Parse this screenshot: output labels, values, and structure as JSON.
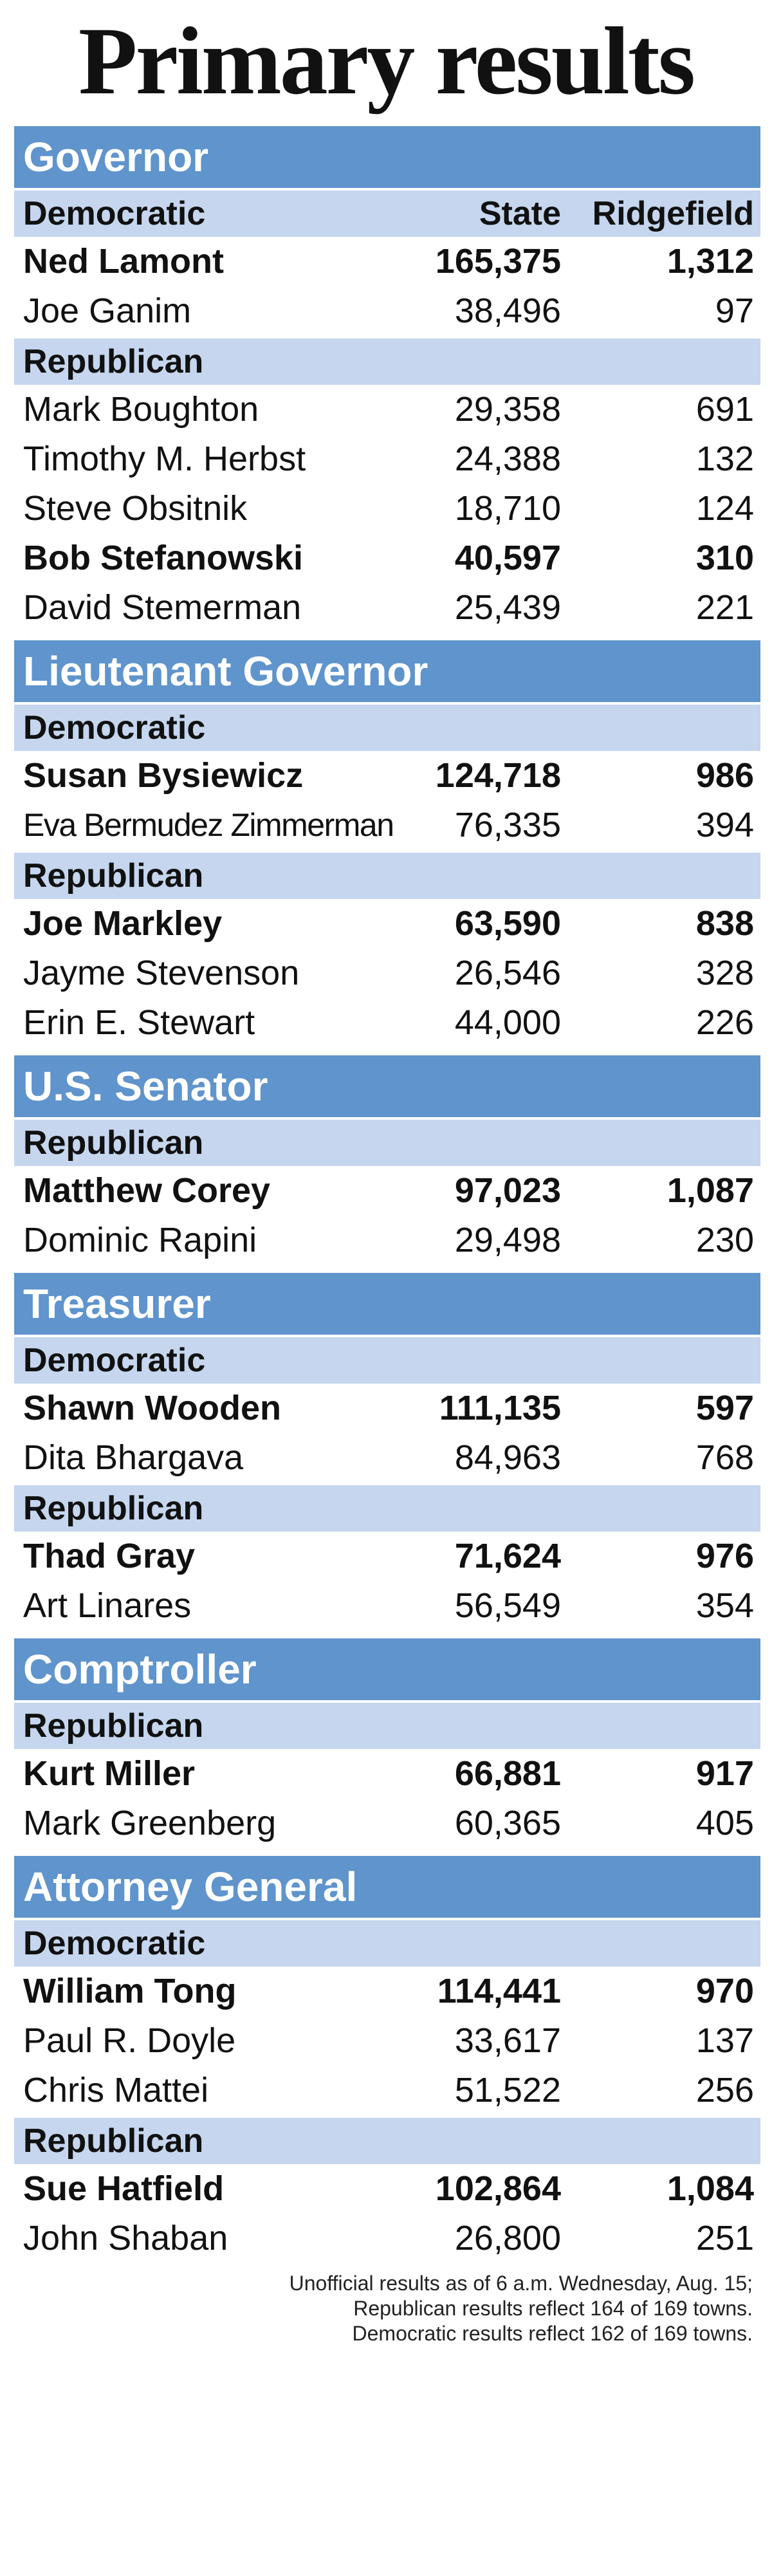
{
  "title": "Primary results",
  "races": [
    {
      "office": "Governor",
      "parties": [
        {
          "party": "Democratic",
          "state_label": "State",
          "town_label": "Ridgefield",
          "candidates": [
            {
              "name": "Ned Lamont",
              "state": "165,375",
              "town": "1,312",
              "winner": true
            },
            {
              "name": "Joe Ganim",
              "state": "38,496",
              "town": "97",
              "winner": false
            }
          ]
        },
        {
          "party": "Republican",
          "candidates": [
            {
              "name": "Mark Boughton",
              "state": "29,358",
              "town": "691",
              "winner": false
            },
            {
              "name": "Timothy M. Herbst",
              "state": "24,388",
              "town": "132",
              "winner": false
            },
            {
              "name": "Steve Obsitnik",
              "state": "18,710",
              "town": "124",
              "winner": false
            },
            {
              "name": "Bob Stefanowski",
              "state": "40,597",
              "town": "310",
              "winner": true
            },
            {
              "name": "David Stemerman",
              "state": "25,439",
              "town": "221",
              "winner": false
            }
          ]
        }
      ]
    },
    {
      "office": "Lieutenant Governor",
      "parties": [
        {
          "party": "Democratic",
          "candidates": [
            {
              "name": "Susan Bysiewicz",
              "state": "124,718",
              "town": "986",
              "winner": true
            },
            {
              "name": "Eva Bermudez Zimmerman",
              "state": "76,335",
              "town": "394",
              "winner": false
            }
          ]
        },
        {
          "party": "Republican",
          "candidates": [
            {
              "name": "Joe Markley",
              "state": "63,590",
              "town": "838",
              "winner": true
            },
            {
              "name": "Jayme Stevenson",
              "state": "26,546",
              "town": "328",
              "winner": false
            },
            {
              "name": "Erin E. Stewart",
              "state": "44,000",
              "town": "226",
              "winner": false
            }
          ]
        }
      ]
    },
    {
      "office": "U.S. Senator",
      "parties": [
        {
          "party": "Republican",
          "candidates": [
            {
              "name": "Matthew Corey",
              "state": "97,023",
              "town": "1,087",
              "winner": true
            },
            {
              "name": "Dominic Rapini",
              "state": "29,498",
              "town": "230",
              "winner": false
            }
          ]
        }
      ]
    },
    {
      "office": "Treasurer",
      "parties": [
        {
          "party": "Democratic",
          "candidates": [
            {
              "name": "Shawn Wooden",
              "state": "111,135",
              "town": "597",
              "winner": true
            },
            {
              "name": "Dita Bhargava",
              "state": "84,963",
              "town": "768",
              "winner": false
            }
          ]
        },
        {
          "party": "Republican",
          "candidates": [
            {
              "name": "Thad Gray",
              "state": "71,624",
              "town": "976",
              "winner": true
            },
            {
              "name": "Art Linares",
              "state": "56,549",
              "town": "354",
              "winner": false
            }
          ]
        }
      ]
    },
    {
      "office": "Comptroller",
      "parties": [
        {
          "party": "Republican",
          "candidates": [
            {
              "name": "Kurt Miller",
              "state": "66,881",
              "town": "917",
              "winner": true
            },
            {
              "name": "Mark Greenberg",
              "state": "60,365",
              "town": "405",
              "winner": false
            }
          ]
        }
      ]
    },
    {
      "office": "Attorney General",
      "parties": [
        {
          "party": "Democratic",
          "candidates": [
            {
              "name": "William Tong",
              "state": "114,441",
              "town": "970",
              "winner": true
            },
            {
              "name": "Paul R. Doyle",
              "state": "33,617",
              "town": "137",
              "winner": false
            },
            {
              "name": "Chris Mattei",
              "state": "51,522",
              "town": "256",
              "winner": false
            }
          ]
        },
        {
          "party": "Republican",
          "candidates": [
            {
              "name": "Sue Hatfield",
              "state": "102,864",
              "town": "1,084",
              "winner": true
            },
            {
              "name": "John Shaban",
              "state": "26,800",
              "town": "251",
              "winner": false
            }
          ]
        }
      ]
    }
  ],
  "footnote": [
    "Unofficial results as of 6 a.m. Wednesday, Aug. 15;",
    "Republican results reflect 164 of 169 towns.",
    "Democratic results reflect 162 of 169 towns."
  ],
  "colors": {
    "race_header_bg": "#5f94cc",
    "party_row_bg": "#c5d6ee"
  }
}
